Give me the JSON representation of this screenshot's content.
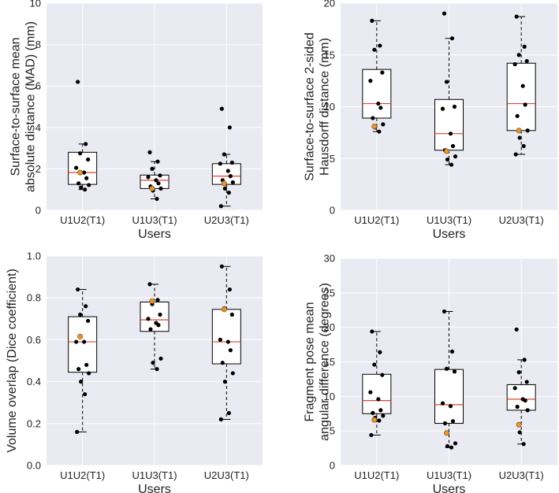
{
  "figure_title": "",
  "colors": {
    "panel_bg": "#eaeaf2",
    "grid": "#ffffff",
    "box_edge": "#000000",
    "box_fill": "#ffffff",
    "median": "#e0433a",
    "point": "#000000",
    "highlight_point": "#e8952b"
  },
  "chart_data": [
    {
      "type": "box",
      "xlabel": "Users",
      "ylabel_lines": [
        "Surface-to-surface mean",
        "absolute distance (MAD) (mm)"
      ],
      "ylim": [
        0,
        10
      ],
      "yticks": [
        0,
        2,
        4,
        6,
        8,
        10
      ],
      "ytick_labels": [
        "0",
        "2",
        "4",
        "6",
        "8",
        "10"
      ],
      "categories": [
        "U1U2(T1)",
        "U1U3(T1)",
        "U2U3(T1)"
      ],
      "grid": true,
      "boxes": [
        {
          "q1": 1.25,
          "median": 1.82,
          "q3": 2.8,
          "whisker_low": 1.0,
          "whisker_high": 3.2,
          "points": [
            6.2,
            3.2,
            2.75,
            2.45,
            2.05,
            1.82,
            1.55,
            1.3,
            1.22,
            1.1,
            1.0
          ],
          "highlight": [
            1.82
          ]
        },
        {
          "q1": 1.05,
          "median": 1.45,
          "q3": 1.7,
          "whisker_low": 0.55,
          "whisker_high": 2.35,
          "points": [
            2.8,
            2.35,
            2.0,
            1.68,
            1.6,
            1.45,
            1.3,
            1.15,
            1.05,
            0.95,
            0.55
          ],
          "highlight": [
            1.05
          ]
        },
        {
          "q1": 1.25,
          "median": 1.65,
          "q3": 2.25,
          "whisker_low": 0.2,
          "whisker_high": 2.7,
          "points": [
            4.9,
            4.0,
            2.7,
            2.3,
            2.25,
            1.9,
            1.65,
            1.45,
            1.35,
            1.05,
            0.85,
            0.2
          ],
          "highlight": [
            1.3
          ]
        }
      ]
    },
    {
      "type": "box",
      "xlabel": "Users",
      "ylabel_lines": [
        "Surface-to-surface 2-sided",
        "Hausdorff distance (mm)"
      ],
      "ylim": [
        0,
        20
      ],
      "yticks": [
        0,
        5,
        10,
        15,
        20
      ],
      "ytick_labels": [
        "0",
        "5",
        "10",
        "15",
        "20"
      ],
      "categories": [
        "U1U2(T1)",
        "U1U3(T1)",
        "U2U3(T1)"
      ],
      "grid": true,
      "boxes": [
        {
          "q1": 8.9,
          "median": 10.3,
          "q3": 13.6,
          "whisker_low": 7.6,
          "whisker_high": 18.3,
          "points": [
            18.3,
            15.9,
            15.5,
            13.3,
            12.5,
            10.3,
            9.9,
            8.9,
            8.3,
            8.0,
            7.6
          ],
          "highlight": [
            8.1
          ]
        },
        {
          "q1": 5.8,
          "median": 7.4,
          "q3": 10.7,
          "whisker_low": 4.4,
          "whisker_high": 16.6,
          "points": [
            19.0,
            16.6,
            12.4,
            10.0,
            9.8,
            7.4,
            6.2,
            5.8,
            5.2,
            4.9,
            4.4
          ],
          "highlight": [
            5.7
          ]
        },
        {
          "q1": 7.7,
          "median": 10.3,
          "q3": 14.2,
          "whisker_low": 5.4,
          "whisker_high": 18.7,
          "points": [
            18.7,
            15.8,
            15.0,
            14.4,
            14.1,
            12.0,
            10.2,
            9.1,
            7.7,
            7.0,
            6.2,
            5.4
          ],
          "highlight": [
            7.7
          ]
        }
      ]
    },
    {
      "type": "box",
      "xlabel": "Users",
      "ylabel_lines": [
        "Volume overlap (Dice coefficient)"
      ],
      "ylim": [
        0,
        1
      ],
      "yticks": [
        0,
        0.2,
        0.4,
        0.6,
        0.8,
        1.0
      ],
      "ytick_labels": [
        "0.0",
        "0.2",
        "0.4",
        "0.6",
        "0.8",
        "1.0"
      ],
      "categories": [
        "U1U2(T1)",
        "U1U3(T1)",
        "U2U3(T1)"
      ],
      "grid": true,
      "boxes": [
        {
          "q1": 0.445,
          "median": 0.59,
          "q3": 0.71,
          "whisker_low": 0.16,
          "whisker_high": 0.84,
          "points": [
            0.84,
            0.76,
            0.72,
            0.69,
            0.59,
            0.59,
            0.48,
            0.46,
            0.44,
            0.4,
            0.34,
            0.16
          ],
          "highlight": [
            0.615
          ]
        },
        {
          "q1": 0.64,
          "median": 0.695,
          "q3": 0.78,
          "whisker_low": 0.46,
          "whisker_high": 0.865,
          "points": [
            0.865,
            0.79,
            0.77,
            0.72,
            0.7,
            0.68,
            0.67,
            0.65,
            0.51,
            0.49,
            0.46
          ],
          "highlight": [
            0.785
          ]
        },
        {
          "q1": 0.485,
          "median": 0.59,
          "q3": 0.745,
          "whisker_low": 0.22,
          "whisker_high": 0.95,
          "points": [
            0.95,
            0.84,
            0.75,
            0.72,
            0.6,
            0.59,
            0.55,
            0.49,
            0.44,
            0.4,
            0.25,
            0.22
          ],
          "highlight": [
            0.745
          ]
        }
      ]
    },
    {
      "type": "box",
      "xlabel": "Users",
      "ylabel_lines": [
        "Fragment pose mean",
        "angular difference (degrees)"
      ],
      "ylim": [
        0,
        30
      ],
      "yticks": [
        0,
        5,
        10,
        15,
        20,
        25,
        30
      ],
      "ytick_labels": [
        "0",
        "5",
        "10",
        "15",
        "20",
        "25",
        "30"
      ],
      "categories": [
        "U1U2(T1)",
        "U1U3(T1)",
        "U2U3(T1)"
      ],
      "grid": true,
      "boxes": [
        {
          "q1": 7.5,
          "median": 9.4,
          "q3": 13.2,
          "whisker_low": 4.4,
          "whisker_high": 19.4,
          "points": [
            19.4,
            16.4,
            14.6,
            13.1,
            10.6,
            9.6,
            8.0,
            7.6,
            7.2,
            6.9,
            6.5,
            4.4
          ],
          "highlight": [
            6.6
          ]
        },
        {
          "q1": 6.1,
          "median": 8.8,
          "q3": 13.9,
          "whisker_low": 2.6,
          "whisker_high": 22.3,
          "points": [
            22.3,
            16.5,
            14.0,
            13.6,
            9.0,
            8.6,
            6.4,
            6.1,
            3.2,
            2.8,
            2.6
          ],
          "highlight": [
            4.7
          ]
        },
        {
          "q1": 8.0,
          "median": 9.6,
          "q3": 11.7,
          "whisker_low": 3.1,
          "whisker_high": 15.3,
          "points": [
            19.7,
            15.3,
            13.5,
            12.1,
            11.2,
            9.6,
            9.4,
            8.5,
            8.0,
            4.8,
            3.1
          ],
          "highlight": [
            5.9
          ]
        }
      ]
    }
  ]
}
